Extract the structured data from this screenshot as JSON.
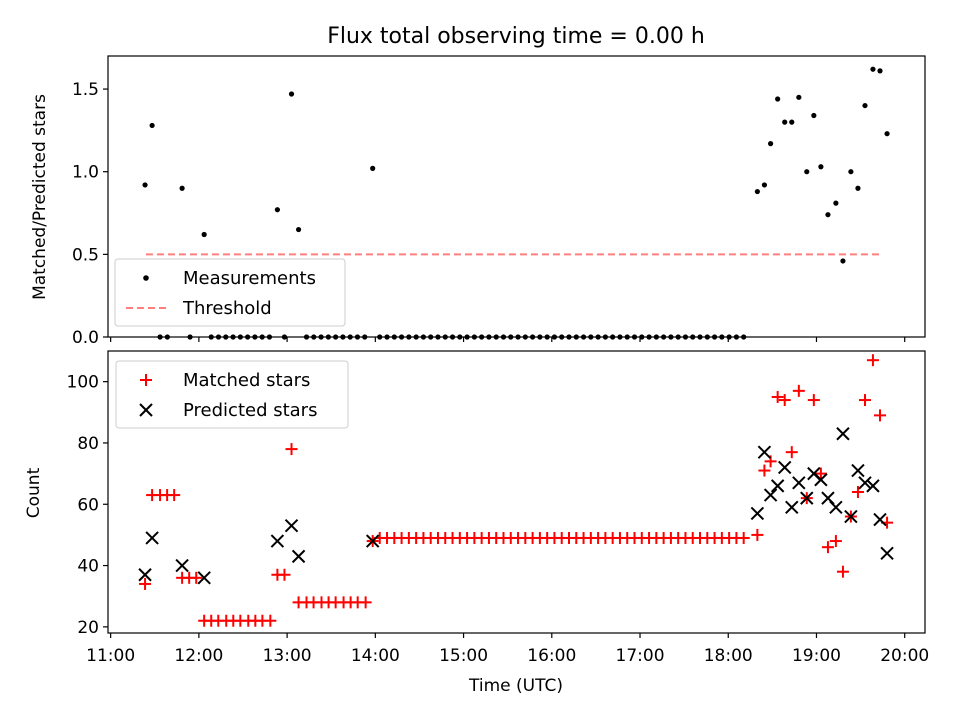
{
  "chart_data": [
    {
      "type": "scatter",
      "title": "Flux total observing time = 0.00 h",
      "xlabel": "",
      "ylabel": "Matched/Predicted stars",
      "xlim": [
        10.97,
        20.23
      ],
      "ylim": [
        0.0,
        1.7
      ],
      "yticks": [
        0.0,
        0.5,
        1.0,
        1.5
      ],
      "ytick_labels": [
        "0.0",
        "0.5",
        "1.0",
        "1.5"
      ],
      "legend": {
        "placement": "lower-left",
        "entries": [
          "Measurements",
          "Threshold"
        ]
      },
      "threshold": {
        "name": "Threshold",
        "value": 0.5,
        "x_start": 11.4,
        "x_end": 19.75,
        "color": "#ff7f7f"
      },
      "series": [
        {
          "name": "Measurements",
          "color": "#000000",
          "points": [
            [
              11.39,
              0.92
            ],
            [
              11.47,
              1.28
            ],
            [
              11.81,
              0.9
            ],
            [
              12.06,
              0.62
            ],
            [
              12.89,
              0.77
            ],
            [
              13.05,
              1.47
            ],
            [
              13.13,
              0.65
            ],
            [
              13.97,
              1.02
            ],
            [
              18.33,
              0.88
            ],
            [
              18.41,
              0.92
            ],
            [
              18.48,
              1.17
            ],
            [
              18.56,
              1.44
            ],
            [
              18.64,
              1.3
            ],
            [
              18.72,
              1.3
            ],
            [
              18.8,
              1.45
            ],
            [
              18.89,
              1.0
            ],
            [
              18.97,
              1.34
            ],
            [
              19.05,
              1.03
            ],
            [
              19.13,
              0.74
            ],
            [
              19.22,
              0.81
            ],
            [
              19.3,
              0.46
            ],
            [
              19.39,
              1.0
            ],
            [
              19.47,
              0.9
            ],
            [
              19.55,
              1.4
            ],
            [
              19.64,
              1.62
            ],
            [
              19.72,
              1.61
            ],
            [
              19.8,
              1.23
            ]
          ],
          "zero_runs": [
            [
              11.56,
              11.72,
              0.0825
            ],
            [
              11.9,
              11.98,
              0.0825
            ],
            [
              12.14,
              12.81,
              0.0825
            ],
            [
              12.97,
              12.97,
              0.0825
            ],
            [
              13.22,
              13.89,
              0.0825
            ],
            [
              14.05,
              18.25,
              0.0825
            ]
          ]
        }
      ]
    },
    {
      "type": "scatter",
      "title": "",
      "xlabel": "Time (UTC)",
      "ylabel": "Count",
      "xlim": [
        10.97,
        20.23
      ],
      "ylim": [
        18.0,
        110.0
      ],
      "yticks": [
        20,
        40,
        60,
        80,
        100
      ],
      "ytick_labels": [
        "20",
        "40",
        "60",
        "80",
        "100"
      ],
      "xticks": [
        11,
        12,
        13,
        14,
        15,
        16,
        17,
        18,
        19,
        20
      ],
      "xtick_labels": [
        "11:00",
        "12:00",
        "13:00",
        "14:00",
        "15:00",
        "16:00",
        "17:00",
        "18:00",
        "19:00",
        "20:00"
      ],
      "legend": {
        "placement": "top-left",
        "entries": [
          "Matched stars",
          "Predicted stars"
        ]
      },
      "series": [
        {
          "name": "Matched stars",
          "color": "#ff0000",
          "marker": "plus",
          "points": [
            [
              11.39,
              34
            ],
            [
              11.47,
              63
            ],
            [
              11.56,
              63
            ],
            [
              11.64,
              63
            ],
            [
              11.72,
              63
            ],
            [
              11.81,
              36
            ],
            [
              11.89,
              36
            ],
            [
              11.97,
              36
            ],
            [
              12.06,
              22
            ],
            [
              12.14,
              22
            ],
            [
              12.22,
              22
            ],
            [
              12.31,
              22
            ],
            [
              12.39,
              22
            ],
            [
              12.47,
              22
            ],
            [
              12.56,
              22
            ],
            [
              12.64,
              22
            ],
            [
              12.72,
              22
            ],
            [
              12.81,
              22
            ],
            [
              12.89,
              37
            ],
            [
              12.97,
              37
            ],
            [
              13.05,
              78
            ],
            [
              13.13,
              28
            ],
            [
              13.22,
              28
            ],
            [
              13.3,
              28
            ],
            [
              13.39,
              28
            ],
            [
              13.47,
              28
            ],
            [
              13.55,
              28
            ],
            [
              13.64,
              28
            ],
            [
              13.72,
              28
            ],
            [
              13.8,
              28
            ],
            [
              13.89,
              28
            ],
            [
              13.97,
              48
            ],
            [
              18.33,
              50
            ],
            [
              18.41,
              71
            ],
            [
              18.48,
              74
            ],
            [
              18.56,
              95
            ],
            [
              18.64,
              94
            ],
            [
              18.72,
              77
            ],
            [
              18.8,
              97
            ],
            [
              18.89,
              62
            ],
            [
              18.97,
              94
            ],
            [
              19.05,
              70
            ],
            [
              19.13,
              46
            ],
            [
              19.22,
              48
            ],
            [
              19.3,
              38
            ],
            [
              19.39,
              56
            ],
            [
              19.47,
              64
            ],
            [
              19.55,
              94
            ],
            [
              19.64,
              107
            ],
            [
              19.72,
              89
            ],
            [
              19.8,
              54
            ]
          ],
          "constant_run": [
            14.05,
            18.25,
            49
          ]
        },
        {
          "name": "Predicted stars",
          "color": "#000000",
          "marker": "x",
          "points": [
            [
              11.39,
              37
            ],
            [
              11.47,
              49
            ],
            [
              11.81,
              40
            ],
            [
              12.06,
              36
            ],
            [
              12.89,
              48
            ],
            [
              13.05,
              53
            ],
            [
              13.13,
              43
            ],
            [
              13.97,
              48
            ],
            [
              18.33,
              57
            ],
            [
              18.41,
              77
            ],
            [
              18.48,
              63
            ],
            [
              18.56,
              66
            ],
            [
              18.64,
              72
            ],
            [
              18.72,
              59
            ],
            [
              18.8,
              67
            ],
            [
              18.89,
              62
            ],
            [
              18.97,
              70
            ],
            [
              19.05,
              68
            ],
            [
              19.13,
              62
            ],
            [
              19.22,
              59
            ],
            [
              19.3,
              83
            ],
            [
              19.39,
              56
            ],
            [
              19.47,
              71
            ],
            [
              19.55,
              67
            ],
            [
              19.64,
              66
            ],
            [
              19.72,
              55
            ],
            [
              19.8,
              44
            ]
          ]
        }
      ]
    }
  ]
}
